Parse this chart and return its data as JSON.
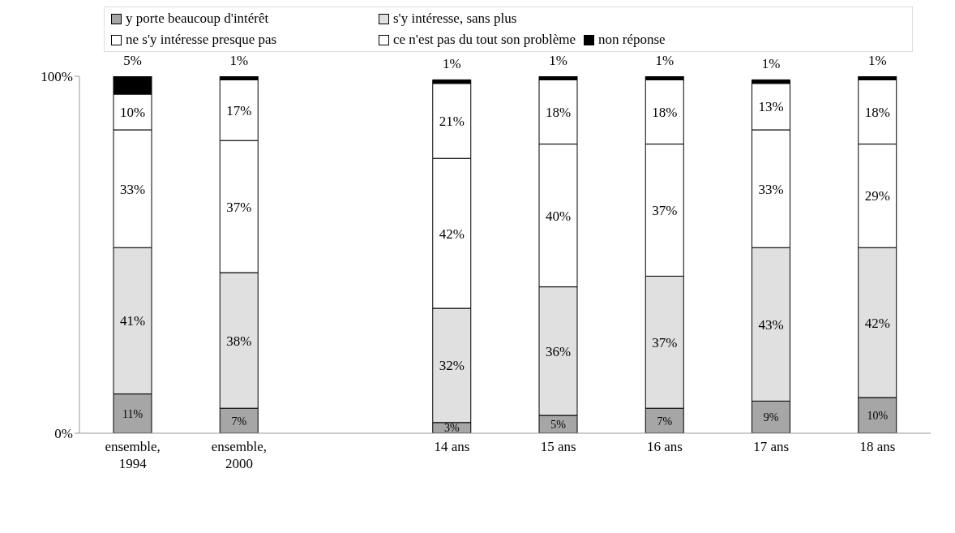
{
  "chart_data": {
    "type": "bar",
    "stacked": true,
    "categories": [
      "ensemble, 1994",
      "ensemble, 2000",
      null,
      "14 ans",
      "15 ans",
      "16 ans",
      "17 ans",
      "18 ans"
    ],
    "series": [
      {
        "name": "y porte beaucoup d'intérêt",
        "color": "#a6a6a6",
        "values": [
          11,
          7,
          null,
          3,
          5,
          7,
          9,
          10
        ],
        "value_labels": [
          "11%",
          "7%",
          null,
          "3%",
          "5%",
          "7%",
          "9%",
          "10%"
        ]
      },
      {
        "name": "s'y intéresse, sans plus",
        "color": "#e0e0e0",
        "values": [
          41,
          38,
          null,
          32,
          36,
          37,
          43,
          42
        ],
        "value_labels": [
          "41%",
          "38%",
          null,
          "32%",
          "36%",
          "37%",
          "43%",
          "42%"
        ]
      },
      {
        "name": "ne s'y intéresse presque pas",
        "color": "#ffffff",
        "values": [
          33,
          37,
          null,
          42,
          40,
          37,
          33,
          29
        ],
        "value_labels": [
          "33%",
          "37%",
          null,
          "42%",
          "40%",
          "37%",
          "33%",
          "29%"
        ]
      },
      {
        "name": "ce n'est pas du tout son problème",
        "color": "#ffffff",
        "values": [
          10,
          17,
          null,
          21,
          18,
          18,
          13,
          18
        ],
        "value_labels": [
          "10%",
          "17%",
          null,
          "21%",
          "18%",
          "18%",
          "13%",
          "18%"
        ]
      },
      {
        "name": "non réponse",
        "color": "#000000",
        "values": [
          5,
          1,
          null,
          1,
          1,
          1,
          1,
          1
        ],
        "value_labels": [
          "5%",
          "1%",
          null,
          "1%",
          "1%",
          "1%",
          "1%",
          "1%"
        ]
      }
    ],
    "ylim": [
      0,
      100
    ],
    "yticks": [
      {
        "value": 0,
        "label": "0%"
      },
      {
        "value": 100,
        "label": "100%"
      }
    ],
    "grid": false,
    "legend": "top"
  }
}
